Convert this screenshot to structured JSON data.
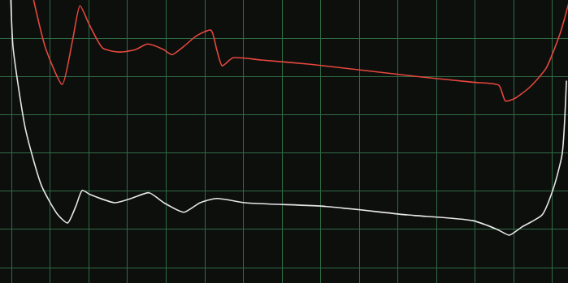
{
  "chart_data": {
    "type": "line",
    "grid": true,
    "tick_labels": false,
    "xlim": [
      -0.3,
      14.4
    ],
    "xticks": [
      0,
      1,
      2,
      3,
      4,
      5,
      6,
      7,
      8,
      9,
      10,
      11,
      12,
      13,
      14
    ],
    "ylim": [
      -0.4,
      7.0
    ],
    "yticks": [
      0,
      1,
      2,
      3,
      4,
      5,
      6,
      7
    ],
    "series": [
      {
        "color": "#e5473d",
        "x": [
          0.57,
          0.88,
          1.31,
          1.58,
          1.77,
          2.0,
          2.36,
          2.78,
          3.2,
          3.52,
          3.94,
          4.15,
          4.46,
          4.78,
          5.16,
          5.31,
          5.45,
          5.73,
          6.46,
          7.73,
          9.2,
          10.67,
          11.94,
          12.61,
          12.78,
          13.03,
          13.41,
          13.83,
          14.21,
          14.44
        ],
        "values": [
          7.0,
          5.74,
          4.79,
          5.96,
          6.85,
          6.38,
          5.74,
          5.64,
          5.7,
          5.85,
          5.7,
          5.57,
          5.79,
          6.06,
          6.21,
          5.7,
          5.28,
          5.49,
          5.43,
          5.32,
          5.15,
          4.98,
          4.85,
          4.77,
          4.36,
          4.43,
          4.72,
          5.21,
          6.17,
          7.0
        ]
      },
      {
        "color": "#e6e6e6",
        "x": [
          -0.02,
          0.04,
          0.36,
          0.78,
          1.2,
          1.45,
          1.66,
          1.83,
          2.04,
          2.67,
          3.09,
          3.56,
          3.94,
          4.46,
          4.88,
          5.31,
          6.04,
          8.15,
          10.25,
          11.94,
          12.57,
          12.88,
          13.2,
          13.73,
          14.04,
          14.25,
          14.36
        ],
        "values": [
          7.0,
          5.74,
          3.62,
          2.13,
          1.38,
          1.17,
          1.6,
          2.02,
          1.91,
          1.7,
          1.81,
          1.96,
          1.7,
          1.45,
          1.7,
          1.81,
          1.7,
          1.6,
          1.38,
          1.23,
          1.0,
          0.85,
          1.06,
          1.38,
          2.13,
          2.98,
          4.89
        ]
      }
    ]
  }
}
